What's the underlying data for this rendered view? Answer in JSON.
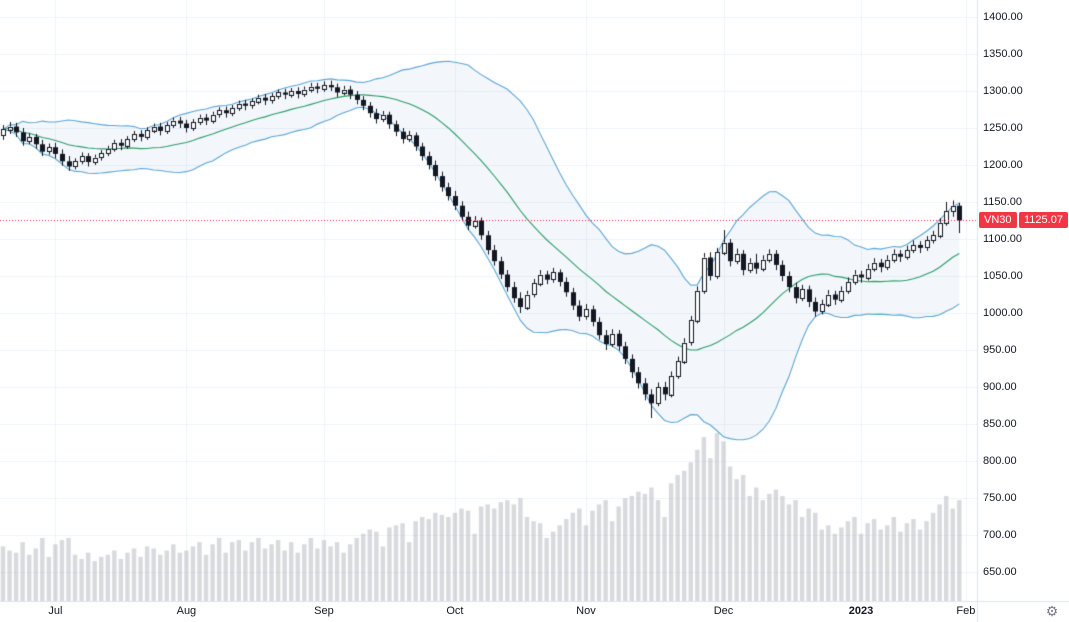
{
  "chart_data": {
    "type": "candlestick",
    "title": "VN30",
    "xlabel": "",
    "ylabel": "",
    "ylim": [
      650,
      1400
    ],
    "grid": true,
    "legend_position": "none",
    "overlays": [
      {
        "type": "bollinger_bands",
        "period": 20,
        "stddev": 2
      },
      {
        "type": "volume",
        "position": "bottom"
      }
    ],
    "y_ticks": [
      "1400.00",
      "1350.00",
      "1300.00",
      "1250.00",
      "1200.00",
      "1150.00",
      "1100.00",
      "1050.00",
      "1000.00",
      "950.00",
      "900.00",
      "850.00",
      "800.00",
      "750.00",
      "700.00",
      "650.00"
    ],
    "x_ticks": [
      {
        "label": "Jul",
        "i": 8
      },
      {
        "label": "Aug",
        "i": 28
      },
      {
        "label": "Sep",
        "i": 49
      },
      {
        "label": "Oct",
        "i": 69
      },
      {
        "label": "Nov",
        "i": 89
      },
      {
        "label": "Dec",
        "i": 110
      },
      {
        "label": "2023",
        "i": 131,
        "year": true
      },
      {
        "label": "Feb",
        "i": 147
      }
    ],
    "price_line": {
      "label": "VN30",
      "value": 1125.07,
      "display": "1125.07",
      "color": "#f23645"
    },
    "colors": {
      "up_candle": "#ffffff",
      "down_candle": "#131722",
      "candle_border": "#131722",
      "bb_band": "#5ea7d8",
      "bb_mid": "#2f9d6a",
      "bb_fill": "rgba(133,181,220,0.10)",
      "volume": "rgba(178,181,190,0.5)",
      "grid": "#f0f3fa",
      "axis_separator": "#e0e3eb",
      "axis_text": "#131722",
      "price_line": "#f23645"
    },
    "candles_format": [
      "open",
      "high",
      "low",
      "close",
      "volume"
    ],
    "candles": [
      [
        1240,
        1254,
        1234,
        1248,
        130
      ],
      [
        1248,
        1258,
        1242,
        1252,
        120
      ],
      [
        1252,
        1257,
        1238,
        1244,
        115
      ],
      [
        1244,
        1250,
        1226,
        1232,
        140
      ],
      [
        1232,
        1243,
        1228,
        1238,
        110
      ],
      [
        1238,
        1242,
        1222,
        1228,
        125
      ],
      [
        1228,
        1234,
        1212,
        1218,
        150
      ],
      [
        1218,
        1229,
        1214,
        1224,
        105
      ],
      [
        1224,
        1230,
        1209,
        1215,
        135
      ],
      [
        1215,
        1221,
        1199,
        1205,
        145
      ],
      [
        1205,
        1212,
        1192,
        1198,
        150
      ],
      [
        1198,
        1209,
        1194,
        1205,
        110
      ],
      [
        1205,
        1217,
        1201,
        1212,
        100
      ],
      [
        1212,
        1216,
        1198,
        1204,
        115
      ],
      [
        1204,
        1214,
        1200,
        1210,
        95
      ],
      [
        1210,
        1220,
        1206,
        1216,
        105
      ],
      [
        1216,
        1226,
        1212,
        1222,
        110
      ],
      [
        1222,
        1234,
        1218,
        1230,
        120
      ],
      [
        1230,
        1235,
        1220,
        1226,
        100
      ],
      [
        1226,
        1239,
        1222,
        1235,
        115
      ],
      [
        1235,
        1246,
        1231,
        1242,
        125
      ],
      [
        1242,
        1247,
        1232,
        1238,
        105
      ],
      [
        1238,
        1251,
        1234,
        1247,
        130
      ],
      [
        1247,
        1256,
        1243,
        1252,
        125
      ],
      [
        1252,
        1257,
        1240,
        1246,
        110
      ],
      [
        1246,
        1258,
        1242,
        1254,
        120
      ],
      [
        1254,
        1264,
        1250,
        1260,
        135
      ],
      [
        1260,
        1265,
        1250,
        1256,
        115
      ],
      [
        1256,
        1261,
        1244,
        1250,
        120
      ],
      [
        1250,
        1262,
        1246,
        1258,
        130
      ],
      [
        1258,
        1268,
        1254,
        1264,
        140
      ],
      [
        1264,
        1269,
        1254,
        1260,
        110
      ],
      [
        1260,
        1272,
        1256,
        1268,
        135
      ],
      [
        1268,
        1278,
        1264,
        1274,
        150
      ],
      [
        1274,
        1279,
        1264,
        1270,
        115
      ],
      [
        1270,
        1281,
        1266,
        1277,
        140
      ],
      [
        1277,
        1287,
        1273,
        1283,
        145
      ],
      [
        1283,
        1288,
        1274,
        1280,
        120
      ],
      [
        1280,
        1290,
        1276,
        1286,
        140
      ],
      [
        1286,
        1295,
        1282,
        1291,
        150
      ],
      [
        1291,
        1296,
        1281,
        1287,
        125
      ],
      [
        1287,
        1297,
        1283,
        1293,
        135
      ],
      [
        1293,
        1302,
        1289,
        1298,
        145
      ],
      [
        1298,
        1303,
        1289,
        1295,
        120
      ],
      [
        1295,
        1304,
        1291,
        1300,
        140
      ],
      [
        1300,
        1305,
        1290,
        1296,
        115
      ],
      [
        1296,
        1306,
        1292,
        1302,
        135
      ],
      [
        1302,
        1311,
        1298,
        1306,
        150
      ],
      [
        1306,
        1311,
        1297,
        1303,
        125
      ],
      [
        1303,
        1313,
        1299,
        1308,
        145
      ],
      [
        1308,
        1314,
        1300,
        1305,
        130
      ],
      [
        1305,
        1310,
        1292,
        1298,
        140
      ],
      [
        1298,
        1307,
        1294,
        1302,
        115
      ],
      [
        1302,
        1307,
        1289,
        1295,
        135
      ],
      [
        1295,
        1300,
        1282,
        1288,
        150
      ],
      [
        1288,
        1293,
        1274,
        1280,
        160
      ],
      [
        1280,
        1285,
        1264,
        1270,
        170
      ],
      [
        1270,
        1276,
        1256,
        1262,
        165
      ],
      [
        1262,
        1273,
        1258,
        1268,
        130
      ],
      [
        1268,
        1272,
        1249,
        1255,
        175
      ],
      [
        1255,
        1260,
        1239,
        1245,
        180
      ],
      [
        1245,
        1250,
        1229,
        1235,
        185
      ],
      [
        1235,
        1246,
        1231,
        1240,
        140
      ],
      [
        1240,
        1244,
        1219,
        1225,
        190
      ],
      [
        1225,
        1230,
        1206,
        1212,
        200
      ],
      [
        1212,
        1218,
        1194,
        1200,
        195
      ],
      [
        1200,
        1206,
        1179,
        1185,
        210
      ],
      [
        1185,
        1191,
        1164,
        1170,
        205
      ],
      [
        1170,
        1176,
        1152,
        1158,
        200
      ],
      [
        1158,
        1165,
        1139,
        1145,
        210
      ],
      [
        1145,
        1151,
        1124,
        1130,
        220
      ],
      [
        1130,
        1137,
        1112,
        1118,
        215
      ],
      [
        1118,
        1131,
        1114,
        1125,
        160
      ],
      [
        1125,
        1129,
        1099,
        1105,
        225
      ],
      [
        1105,
        1111,
        1079,
        1085,
        230
      ],
      [
        1085,
        1092,
        1064,
        1070,
        220
      ],
      [
        1070,
        1076,
        1046,
        1052,
        235
      ],
      [
        1052,
        1058,
        1029,
        1035,
        240
      ],
      [
        1035,
        1042,
        1014,
        1020,
        230
      ],
      [
        1020,
        1028,
        1000,
        1008,
        245
      ],
      [
        1008,
        1030,
        1004,
        1025,
        200
      ],
      [
        1025,
        1046,
        1021,
        1040,
        190
      ],
      [
        1040,
        1058,
        1036,
        1052,
        185
      ],
      [
        1052,
        1057,
        1039,
        1045,
        150
      ],
      [
        1045,
        1061,
        1041,
        1055,
        165
      ],
      [
        1055,
        1059,
        1036,
        1042,
        180
      ],
      [
        1042,
        1048,
        1022,
        1028,
        195
      ],
      [
        1028,
        1034,
        1004,
        1010,
        210
      ],
      [
        1010,
        1017,
        989,
        995,
        220
      ],
      [
        995,
        1012,
        991,
        1005,
        180
      ],
      [
        1005,
        1010,
        982,
        988,
        215
      ],
      [
        988,
        994,
        964,
        970,
        230
      ],
      [
        970,
        977,
        950,
        958,
        240
      ],
      [
        958,
        978,
        954,
        972,
        190
      ],
      [
        972,
        977,
        949,
        955,
        225
      ],
      [
        955,
        961,
        931,
        938,
        245
      ],
      [
        938,
        944,
        912,
        920,
        250
      ],
      [
        920,
        927,
        898,
        905,
        260
      ],
      [
        905,
        912,
        882,
        890,
        255
      ],
      [
        890,
        897,
        858,
        878,
        270
      ],
      [
        878,
        906,
        874,
        900,
        240
      ],
      [
        900,
        907,
        882,
        890,
        200
      ],
      [
        890,
        921,
        886,
        915,
        280
      ],
      [
        915,
        941,
        911,
        935,
        300
      ],
      [
        935,
        966,
        931,
        960,
        310
      ],
      [
        960,
        996,
        956,
        990,
        330
      ],
      [
        990,
        1036,
        986,
        1030,
        360
      ],
      [
        1030,
        1081,
        1026,
        1075,
        390
      ],
      [
        1075,
        1082,
        1044,
        1050,
        340
      ],
      [
        1050,
        1088,
        1046,
        1082,
        400
      ],
      [
        1082,
        1112,
        1078,
        1095,
        380
      ],
      [
        1095,
        1100,
        1063,
        1070,
        320
      ],
      [
        1070,
        1087,
        1066,
        1080,
        290
      ],
      [
        1080,
        1085,
        1051,
        1058,
        300
      ],
      [
        1058,
        1074,
        1054,
        1068,
        250
      ],
      [
        1068,
        1080,
        1053,
        1060,
        270
      ],
      [
        1060,
        1078,
        1056,
        1072,
        240
      ],
      [
        1072,
        1086,
        1068,
        1080,
        255
      ],
      [
        1080,
        1085,
        1058,
        1065,
        265
      ],
      [
        1065,
        1071,
        1043,
        1050,
        250
      ],
      [
        1050,
        1056,
        1028,
        1035,
        230
      ],
      [
        1035,
        1041,
        1013,
        1020,
        240
      ],
      [
        1020,
        1038,
        1016,
        1032,
        200
      ],
      [
        1032,
        1037,
        1008,
        1015,
        220
      ],
      [
        1015,
        1021,
        995,
        1002,
        210
      ],
      [
        1002,
        1018,
        998,
        1012,
        170
      ],
      [
        1012,
        1031,
        1008,
        1025,
        180
      ],
      [
        1025,
        1030,
        1011,
        1018,
        160
      ],
      [
        1018,
        1036,
        1014,
        1030,
        175
      ],
      [
        1030,
        1048,
        1026,
        1042,
        190
      ],
      [
        1042,
        1058,
        1038,
        1052,
        200
      ],
      [
        1052,
        1057,
        1041,
        1048,
        160
      ],
      [
        1048,
        1066,
        1044,
        1060,
        185
      ],
      [
        1060,
        1074,
        1056,
        1068,
        195
      ],
      [
        1068,
        1073,
        1055,
        1062,
        170
      ],
      [
        1062,
        1078,
        1058,
        1072,
        180
      ],
      [
        1072,
        1086,
        1068,
        1080,
        200
      ],
      [
        1080,
        1085,
        1069,
        1076,
        165
      ],
      [
        1076,
        1091,
        1072,
        1085,
        185
      ],
      [
        1085,
        1098,
        1081,
        1092,
        195
      ],
      [
        1092,
        1097,
        1081,
        1088,
        170
      ],
      [
        1088,
        1104,
        1084,
        1098,
        190
      ],
      [
        1098,
        1111,
        1094,
        1105,
        210
      ],
      [
        1105,
        1128,
        1101,
        1122,
        230
      ],
      [
        1122,
        1150,
        1118,
        1138,
        250
      ],
      [
        1138,
        1152,
        1130,
        1145,
        220
      ],
      [
        1145,
        1149,
        1108,
        1125.07,
        240
      ]
    ]
  },
  "ui": {
    "gear_icon": "⚙"
  }
}
